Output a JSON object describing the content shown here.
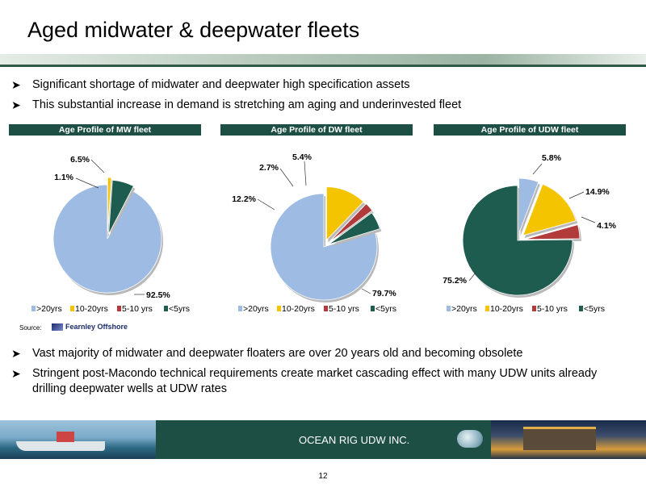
{
  "title": "Aged midwater & deepwater fleets",
  "bullets_top": [
    "Significant shortage of midwater and deepwater  high specification assets",
    "This substantial increase in demand is stretching am aging and underinvested fleet"
  ],
  "bullets_bottom": [
    "Vast majority of midwater and deepwater floaters are over 20 years old and becoming obsolete",
    "Stringent post-Macondo technical requirements create market cascading effect with many UDW units already drilling deepwater wells at UDW rates"
  ],
  "source_label": "Source:",
  "source_name": "Fearnley Offshore",
  "company": "OCEAN RIG UDW INC.",
  "page_number": "12",
  "colors": {
    "header": "#1d4f45",
    ">20yrs": "#9dbbe3",
    "10-20yrs": "#f5c400",
    "5-10 yrs": "#b23a3a",
    "<5yrs": "#1e5c4f"
  },
  "chart_data": [
    {
      "type": "pie",
      "title": "Age Profile of MW fleet",
      "categories": [
        ">20yrs",
        "10-20yrs",
        "5-10 yrs",
        "<5yrs"
      ],
      "values": [
        92.5,
        1.1,
        0,
        6.5
      ],
      "labels": [
        "92.5%",
        "1.1%",
        "",
        "6.5%"
      ],
      "legend": [
        ">20yrs",
        "10-20yrs",
        "5-10 yrs",
        "<5yrs"
      ],
      "legend_position": "bottom"
    },
    {
      "type": "pie",
      "title": "Age Profile of DW fleet",
      "categories": [
        ">20yrs",
        "10-20yrs",
        "5-10 yrs",
        "<5yrs"
      ],
      "values": [
        79.7,
        12.2,
        2.7,
        5.4
      ],
      "labels": [
        "79.7%",
        "12.2%",
        "2.7%",
        "5.4%"
      ],
      "legend": [
        ">20yrs",
        "10-20yrs",
        "5-10 yrs",
        "<5yrs"
      ],
      "legend_position": "bottom"
    },
    {
      "type": "pie",
      "title": "Age Profile of UDW fleet",
      "categories": [
        ">20yrs",
        "10-20yrs",
        "5-10 yrs",
        "<5yrs"
      ],
      "values": [
        5.8,
        14.9,
        4.1,
        75.2
      ],
      "labels": [
        "5.8%",
        "14.9%",
        "4.1%",
        "75.2%"
      ],
      "legend": [
        ">20yrs",
        "10-20yrs",
        "5-10 yrs",
        "<5yrs"
      ],
      "legend_position": "bottom"
    }
  ]
}
